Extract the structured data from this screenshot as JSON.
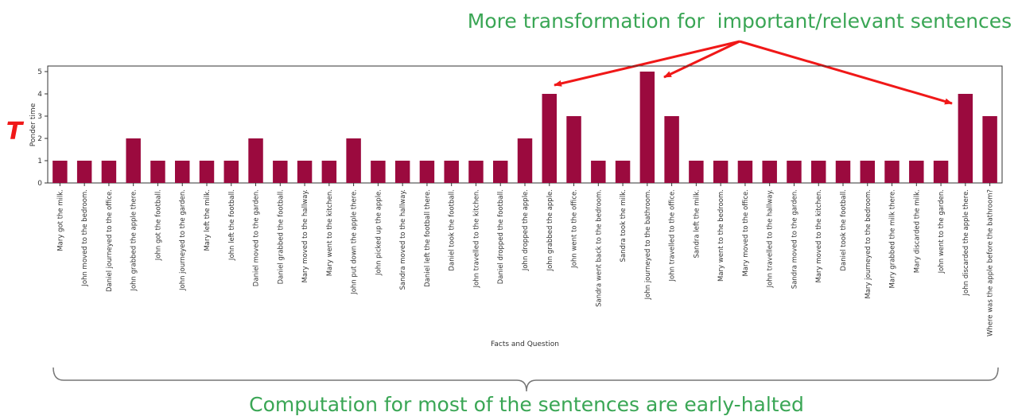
{
  "chart_data": {
    "type": "bar",
    "categories": [
      "Mary got the milk.",
      "John moved to the bedroom.",
      "Daniel journeyed to the office.",
      "John grabbed the apple there.",
      "John got the football.",
      "John journeyed to the garden.",
      "Mary left the milk.",
      "John left the football.",
      "Daniel moved to the garden.",
      "Daniel grabbed the football.",
      "Mary moved to the hallway.",
      "Mary went to the kitchen.",
      "John put down the apple there.",
      "John picked up the apple.",
      "Sandra moved to the hallway.",
      "Daniel left the football there.",
      "Daniel took the football.",
      "John travelled to the kitchen.",
      "Daniel dropped the football.",
      "John dropped the apple.",
      "John grabbed the apple.",
      "John went to the office.",
      "Sandra went back to the bedroom.",
      "Sandra took the milk.",
      "John journeyed to the bathroom.",
      "John travelled to the office.",
      "Sandra left the milk.",
      "Mary went to the bedroom.",
      "Mary moved to the office.",
      "John travelled to the hallway.",
      "Sandra moved to the garden.",
      "Mary moved to the kitchen.",
      "Daniel took the football.",
      "Mary journeyed to the bedroom.",
      "Mary grabbed the milk there.",
      "Mary discarded the milk.",
      "John went to the garden.",
      "John discarded the apple there.",
      "Where was the apple before the bathroom?"
    ],
    "values": [
      1,
      1,
      1,
      2,
      1,
      1,
      1,
      1,
      2,
      1,
      1,
      1,
      2,
      1,
      1,
      1,
      1,
      1,
      1,
      2,
      4,
      3,
      1,
      1,
      5,
      3,
      1,
      1,
      1,
      1,
      1,
      1,
      1,
      1,
      1,
      1,
      1,
      4,
      3
    ],
    "color": "#9b0a3e",
    "ylim": [
      0,
      5.25
    ],
    "yticks": [
      0,
      1,
      2,
      3,
      4,
      5
    ],
    "xlabel": "Facts and Question",
    "ylabel": "Ponder time",
    "annotations": {
      "symbol": "T",
      "top_note": "More transformation for  important/relevant sentences",
      "bottom_note": "Computation for most of the sentences are early-halted"
    }
  }
}
